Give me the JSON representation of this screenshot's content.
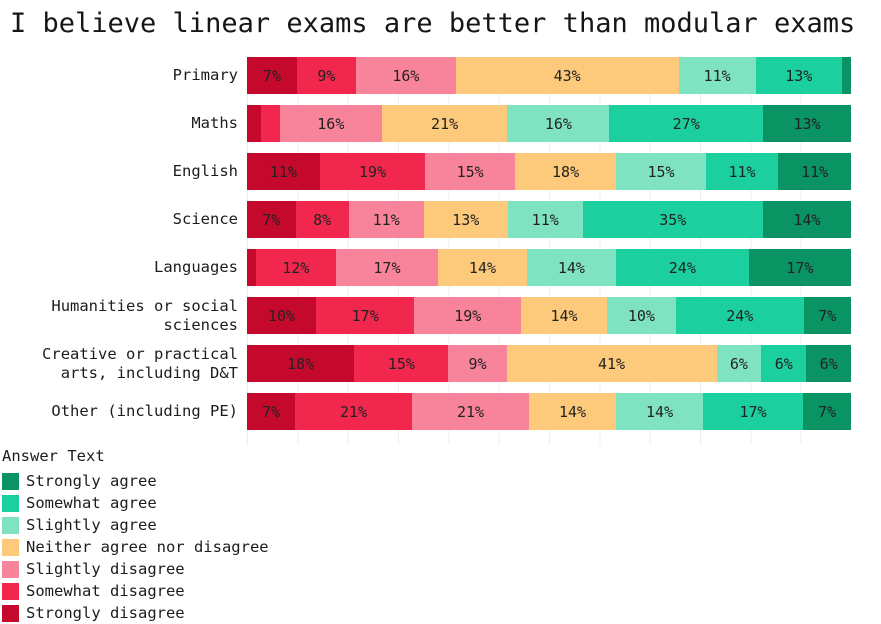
{
  "title": "I believe linear exams are better than modular exams",
  "legend": {
    "title": "Answer Text",
    "order": "reversed (Strongly agree listed first)"
  },
  "chart_data": {
    "type": "bar",
    "stacked": true,
    "orientation": "horizontal",
    "title": "I believe linear exams are better than modular exams",
    "value_unit": "%",
    "xlim": [
      0,
      100
    ],
    "grid": "faint vertical gridlines",
    "legend_position": "bottom-left",
    "label_threshold": 6,
    "categories": [
      "Primary",
      "Maths",
      "English",
      "Science",
      "Languages",
      "Humanities or social sciences",
      "Creative or practical arts, including D&T",
      "Other (including PE)"
    ],
    "series": [
      {
        "name": "Strongly disagree",
        "color": "#c5092c",
        "values": [
          7,
          3,
          11,
          7,
          2,
          10,
          18,
          7
        ]
      },
      {
        "name": "Somewhat disagree",
        "color": "#f2274e",
        "values": [
          9,
          4,
          19,
          8,
          12,
          17,
          15,
          21
        ]
      },
      {
        "name": "Slightly disagree",
        "color": "#f8849c",
        "values": [
          16,
          16,
          15,
          11,
          17,
          19,
          9,
          21
        ]
      },
      {
        "name": "Neither agree nor disagree",
        "color": "#fdc97b",
        "values": [
          43,
          21,
          18,
          13,
          14,
          14,
          41,
          14
        ]
      },
      {
        "name": "Slightly agree",
        "color": "#7fe3c2",
        "values": [
          11,
          16,
          15,
          11,
          14,
          10,
          6,
          14
        ]
      },
      {
        "name": "Somewhat agree",
        "color": "#1ccf9e",
        "values": [
          13,
          27,
          11,
          35,
          24,
          24,
          6,
          17
        ]
      },
      {
        "name": "Strongly agree",
        "color": "#0a9363",
        "values": [
          2,
          13,
          11,
          14,
          17,
          7,
          6,
          7
        ]
      }
    ]
  }
}
